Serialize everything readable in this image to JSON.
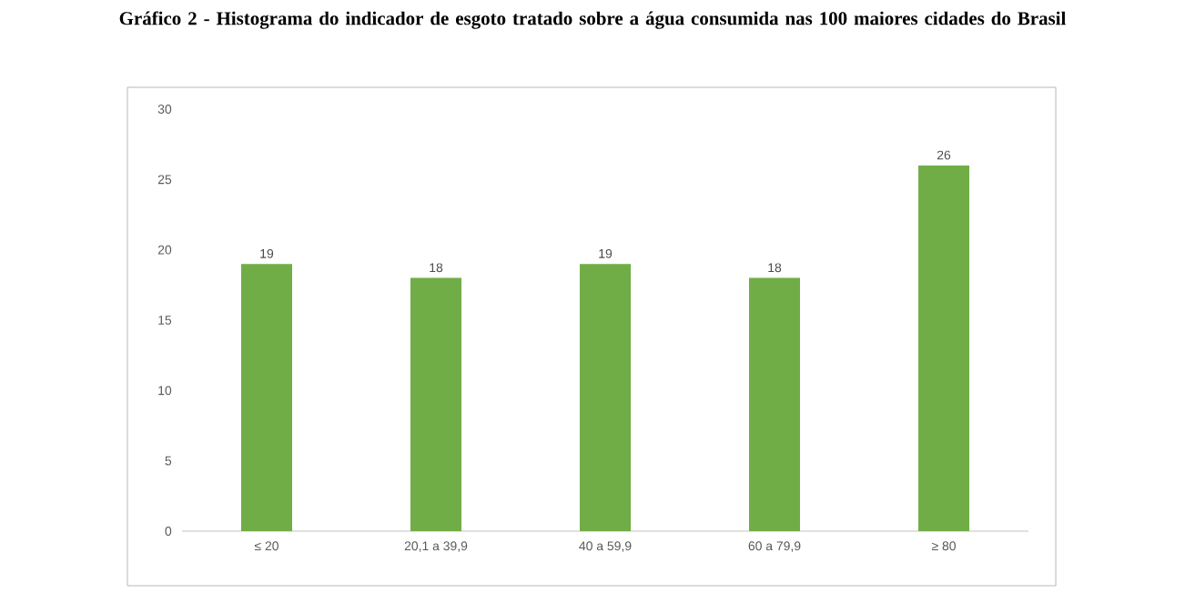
{
  "chart_data": {
    "type": "bar",
    "title": "Gráfico 2 - Histograma do indicador de esgoto tratado sobre a água consumida nas 100 maiores cidades do Brasil",
    "categories": [
      "≤ 20",
      "20,1 a 39,9",
      "40 a 59,9",
      "60 a 79,9",
      "≥ 80"
    ],
    "values": [
      19,
      18,
      19,
      18,
      26
    ],
    "color": "#70ad47",
    "ylim": [
      0,
      30
    ],
    "yticks": [
      0,
      5,
      10,
      15,
      20,
      25,
      30
    ],
    "data_labels": true
  }
}
